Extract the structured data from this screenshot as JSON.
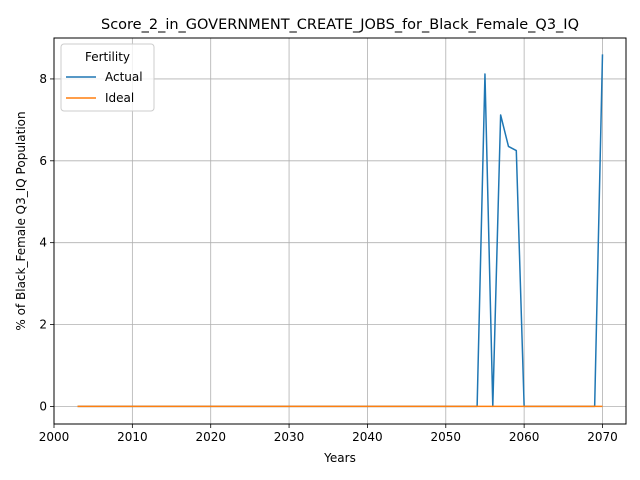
{
  "chart_data": {
    "type": "line",
    "title": "Score_2_in_GOVERNMENT_CREATE_JOBS_for_Black_Female_Q3_IQ",
    "xlabel": "Years",
    "ylabel": "% of Black_Female Q3_IQ Population",
    "xlim": [
      2000,
      2073
    ],
    "ylim": [
      -0.43,
      9.0
    ],
    "xticks": [
      2000,
      2010,
      2020,
      2030,
      2040,
      2050,
      2060,
      2070
    ],
    "yticks": [
      0,
      2,
      4,
      6,
      8
    ],
    "grid": true,
    "legend": {
      "title": "Fertility",
      "placement": "top-left"
    },
    "series": [
      {
        "name": "Actual",
        "color": "#1f77b4",
        "x": [
          2003,
          2054,
          2055,
          2056,
          2057,
          2058,
          2059,
          2060,
          2069,
          2070
        ],
        "y": [
          0,
          0,
          8.12,
          0,
          7.12,
          6.35,
          6.25,
          0,
          0,
          8.6
        ]
      },
      {
        "name": "Ideal",
        "color": "#ff7f0e",
        "x": [
          2003,
          2070
        ],
        "y": [
          0,
          0
        ]
      }
    ]
  }
}
